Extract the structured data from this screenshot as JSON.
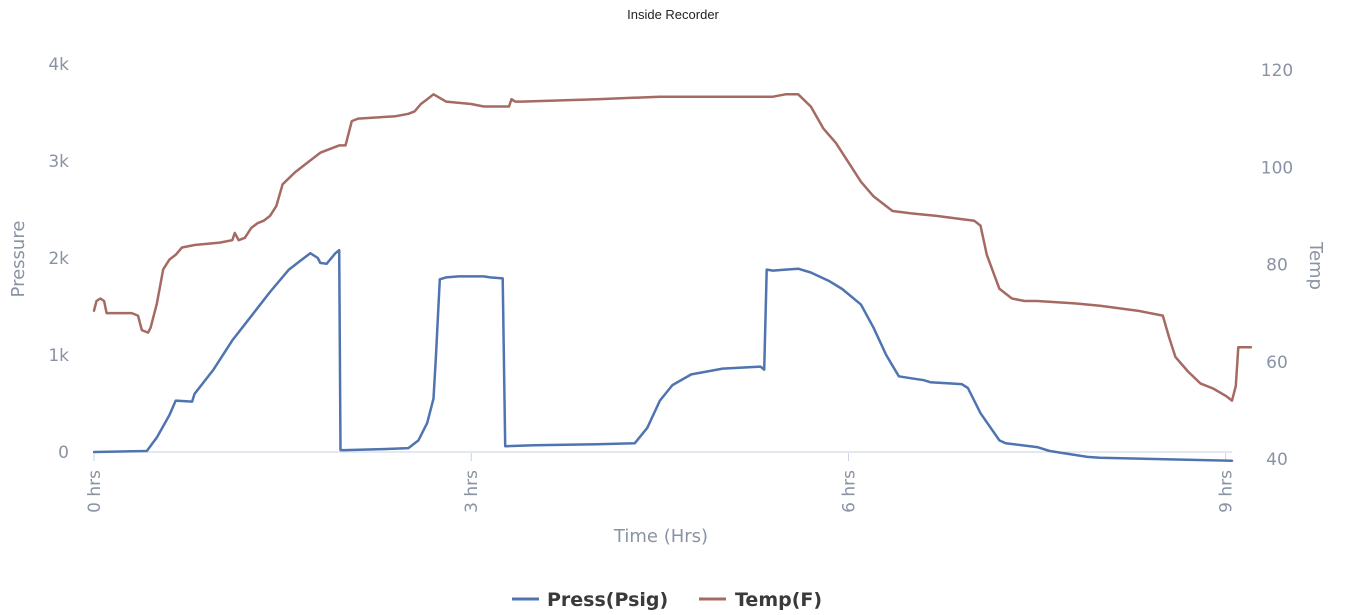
{
  "chart_data": {
    "type": "line",
    "title": "Inside Recorder",
    "xlabel": "Time (Hrs)",
    "x_ticks": [
      {
        "value": 0,
        "label": "0 hrs"
      },
      {
        "value": 3,
        "label": "3 hrs"
      },
      {
        "value": 6,
        "label": "6 hrs"
      },
      {
        "value": 9,
        "label": "9 hrs"
      }
    ],
    "xlim": [
      0,
      9.05
    ],
    "y_left": {
      "label": "Pressure",
      "ylim": [
        0,
        4000
      ],
      "ticks": [
        {
          "value": 0,
          "label": "0"
        },
        {
          "value": 1000,
          "label": "1k"
        },
        {
          "value": 2000,
          "label": "2k"
        },
        {
          "value": 3000,
          "label": "3k"
        },
        {
          "value": 4000,
          "label": "4k"
        }
      ]
    },
    "y_right": {
      "label": "Temp",
      "ylim": [
        40,
        120
      ],
      "ticks": [
        {
          "value": 40,
          "label": "40"
        },
        {
          "value": 60,
          "label": "60"
        },
        {
          "value": 80,
          "label": "80"
        },
        {
          "value": 100,
          "label": "100"
        },
        {
          "value": 120,
          "label": "120"
        }
      ]
    },
    "grid": false,
    "legend_position": "bottom-center",
    "series": [
      {
        "name": "Press(Psig)",
        "axis": "left",
        "color": "#4f74b0",
        "x": [
          0,
          0.42,
          0.5,
          0.6,
          0.65,
          0.78,
          0.8,
          0.95,
          1.1,
          1.25,
          1.4,
          1.55,
          1.65,
          1.72,
          1.78,
          1.8,
          1.85,
          1.92,
          1.95,
          1.96,
          2.0,
          2.3,
          2.5,
          2.58,
          2.65,
          2.7,
          2.72,
          2.75,
          2.8,
          2.9,
          3.0,
          3.1,
          3.15,
          3.25,
          3.27,
          3.5,
          4.0,
          4.3,
          4.4,
          4.5,
          4.6,
          4.75,
          5.0,
          5.3,
          5.33,
          5.35,
          5.4,
          5.5,
          5.6,
          5.7,
          5.85,
          5.95,
          6.1,
          6.2,
          6.3,
          6.4,
          6.5,
          6.6,
          6.65,
          6.9,
          6.95,
          7.05,
          7.2,
          7.25,
          7.5,
          7.6,
          7.9,
          8.0,
          9.05
        ],
        "y": [
          0,
          10,
          150,
          380,
          530,
          520,
          600,
          850,
          1150,
          1400,
          1650,
          1880,
          1980,
          2050,
          2000,
          1950,
          1940,
          2050,
          2080,
          20,
          20,
          30,
          40,
          120,
          300,
          550,
          1000,
          1780,
          1800,
          1810,
          1810,
          1810,
          1800,
          1790,
          60,
          70,
          80,
          90,
          250,
          530,
          690,
          800,
          860,
          880,
          850,
          1880,
          1870,
          1880,
          1890,
          1850,
          1760,
          1680,
          1520,
          1280,
          1000,
          780,
          760,
          740,
          720,
          700,
          660,
          400,
          120,
          90,
          50,
          10,
          -50,
          -60,
          -90
        ]
      },
      {
        "name": "Temp(F)",
        "axis": "right",
        "color": "#a56a62",
        "x": [
          0,
          0.02,
          0.05,
          0.08,
          0.1,
          0.2,
          0.3,
          0.35,
          0.38,
          0.43,
          0.45,
          0.5,
          0.55,
          0.6,
          0.65,
          0.7,
          0.8,
          1.0,
          1.1,
          1.12,
          1.15,
          1.2,
          1.25,
          1.3,
          1.35,
          1.4,
          1.45,
          1.5,
          1.6,
          1.7,
          1.8,
          1.9,
          1.95,
          2.0,
          2.05,
          2.1,
          2.4,
          2.5,
          2.55,
          2.6,
          2.65,
          2.7,
          2.8,
          3.0,
          3.1,
          3.3,
          3.32,
          3.35,
          3.4,
          4.0,
          4.5,
          5.0,
          5.3,
          5.4,
          5.5,
          5.6,
          5.7,
          5.8,
          5.9,
          6.0,
          6.1,
          6.2,
          6.3,
          6.35,
          6.5,
          6.7,
          7.0,
          7.05,
          7.1,
          7.2,
          7.3,
          7.4,
          7.5,
          7.8,
          8.0,
          8.3,
          8.5,
          8.55,
          8.6,
          8.7,
          8.8,
          8.9,
          9.0,
          9.05,
          9.08,
          9.1,
          9.2
        ],
        "y": [
          70.5,
          72.5,
          73,
          72.5,
          70,
          70,
          70,
          69.5,
          66.5,
          66,
          67,
          72,
          79,
          81,
          82,
          83.5,
          84,
          84.5,
          85,
          86.5,
          85,
          85.5,
          87.5,
          88.5,
          89,
          90,
          92,
          96.5,
          99,
          101,
          103,
          104,
          104.5,
          104.5,
          109.5,
          110,
          110.5,
          111,
          111.5,
          113,
          114,
          115,
          113.5,
          113,
          112.5,
          112.5,
          114,
          113.5,
          113.5,
          114,
          114.5,
          114.5,
          114.5,
          114.5,
          115,
          115,
          112.5,
          108,
          105,
          101,
          97,
          94,
          92,
          91,
          90.5,
          90,
          89,
          88,
          82,
          75,
          73,
          72.5,
          72.5,
          72,
          71.5,
          70.5,
          69.5,
          65,
          61,
          58,
          55.5,
          54.5,
          53,
          52,
          55,
          63,
          63
        ]
      }
    ]
  }
}
